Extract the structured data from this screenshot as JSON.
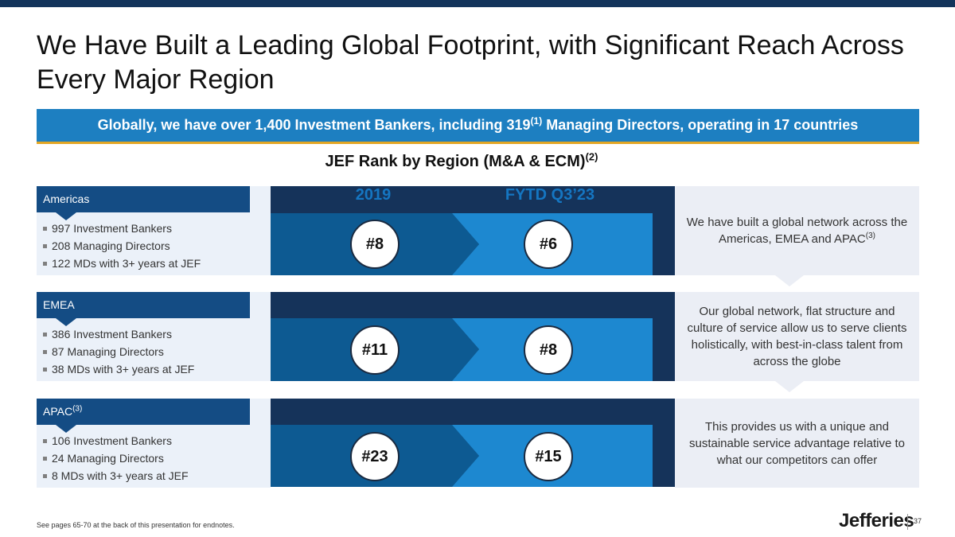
{
  "title": "We Have Built a Leading Global Footprint, with Significant Reach Across Every Major Region",
  "banner": {
    "text_main": "Globally, we have over 1,400 Investment Bankers, including 319",
    "text_sup": "(1)",
    "text_rest": " Managing Directors, operating in 17 countries"
  },
  "rank_heading": {
    "text": "JEF Rank by Region (M&A & ECM)",
    "sup": "(2)"
  },
  "columns": {
    "col1": "2019",
    "col2": "FYTD Q3’23"
  },
  "regions": [
    {
      "name": "Americas",
      "sup": "",
      "bullets": [
        "997 Investment Bankers",
        "208 Managing Directors",
        "122 MDs with 3+ years at JEF"
      ],
      "rank_2019": "#8",
      "rank_fytd": "#6"
    },
    {
      "name": "EMEA",
      "sup": "",
      "bullets": [
        "386 Investment Bankers",
        "87 Managing Directors",
        "38 MDs with 3+ years at JEF"
      ],
      "rank_2019": "#11",
      "rank_fytd": "#8"
    },
    {
      "name": "APAC",
      "sup": "(3)",
      "bullets": [
        "106 Investment Bankers",
        "24 Managing Directors",
        "8 MDs with 3+ years at JEF"
      ],
      "rank_2019": "#23",
      "rank_fytd": "#15"
    }
  ],
  "messages": [
    {
      "text": "We have built a global network across the Americas, EMEA and APAC",
      "sup": "(3)"
    },
    {
      "text": "Our global network, flat structure and culture of service allow us to serve clients holistically, with best-in-class talent from across the globe",
      "sup": ""
    },
    {
      "text": "This provides us with a unique and sustainable service advantage relative to what our competitors can offer",
      "sup": ""
    }
  ],
  "footnote": "See pages 65-70 at the back of this presentation for endnotes.",
  "logo": "Jefferies",
  "page_number": "37",
  "colors": {
    "navy": "#13345b",
    "banner_blue": "#1d7fc1",
    "gold": "#e3a623",
    "header_blue": "#144c84",
    "col_dark": "#0d5a92",
    "col_light": "#1d88d0",
    "accent_text": "#1576c2"
  }
}
